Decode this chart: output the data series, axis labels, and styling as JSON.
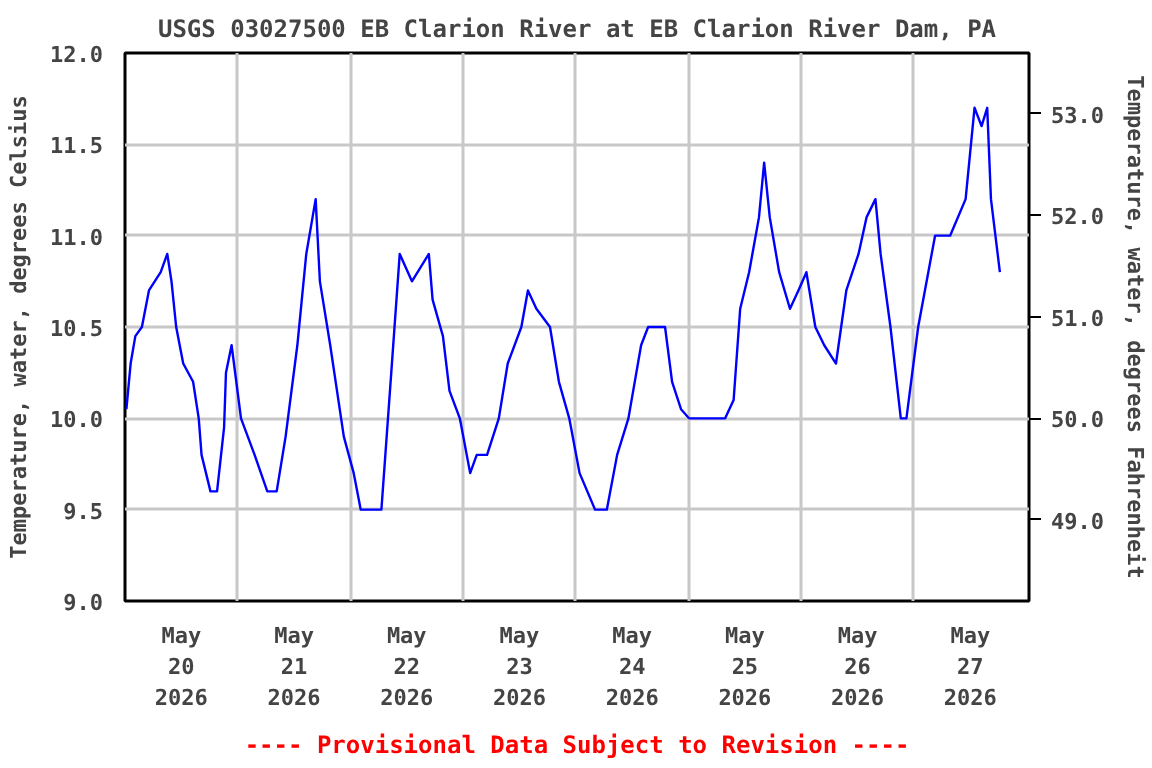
{
  "chart_data": {
    "type": "line",
    "title": "USGS 03027500 EB Clarion River at EB Clarion River Dam, PA",
    "ylabel": "Temperature, water, degrees Celsius",
    "y2label": "Temperature, water, degrees Fahrenheit",
    "annotations": [
      "---- Provisional Data Subject to Revision ----"
    ],
    "color": "#0000ff",
    "grid": true,
    "xlim": [
      "2026-05-20T00:00",
      "2026-05-28T00:30"
    ],
    "xticks": [
      {
        "value": "2026-05-20T12:00",
        "label": "May\n20\n2026"
      },
      {
        "value": "2026-05-21T12:00",
        "label": "May\n21\n2026"
      },
      {
        "value": "2026-05-22T12:00",
        "label": "May\n22\n2026"
      },
      {
        "value": "2026-05-23T12:00",
        "label": "May\n23\n2026"
      },
      {
        "value": "2026-05-24T12:00",
        "label": "May\n24\n2026"
      },
      {
        "value": "2026-05-25T12:00",
        "label": "May\n25\n2026"
      },
      {
        "value": "2026-05-26T12:00",
        "label": "May\n26\n2026"
      },
      {
        "value": "2026-05-27T12:00",
        "label": "May\n27\n2026"
      },
      {
        "value": "2026-05-21T00:00",
        "label": null
      },
      {
        "value": "2026-05-22T00:00",
        "label": null
      },
      {
        "value": "2026-05-23T00:00",
        "label": null
      },
      {
        "value": "2026-05-24T00:00",
        "label": null
      },
      {
        "value": "2026-05-25T00:00",
        "label": null
      },
      {
        "value": "2026-05-26T00:00",
        "label": null
      },
      {
        "value": "2026-05-27T00:00",
        "label": null
      }
    ],
    "ylim": [
      9.0,
      12.0
    ],
    "yticks": [
      {
        "value": 9.0,
        "label": "9.0"
      },
      {
        "value": 9.5,
        "label": "9.5"
      },
      {
        "value": 10.0,
        "label": "10.0"
      },
      {
        "value": 10.5,
        "label": "10.5"
      },
      {
        "value": 11.0,
        "label": "11.0"
      },
      {
        "value": 11.5,
        "label": "11.5"
      },
      {
        "value": 12.0,
        "label": "12.0"
      }
    ],
    "y2lim": [
      48.2,
      53.6
    ],
    "y2ticks": [
      {
        "value": 49,
        "label": "49.0"
      },
      {
        "value": 50,
        "label": "50.0"
      },
      {
        "value": 51,
        "label": "51.0"
      },
      {
        "value": 52,
        "label": "52.0"
      },
      {
        "value": 53,
        "label": "53.0"
      }
    ],
    "x": [
      "2026-05-20T00:18",
      "2026-05-20T01:12",
      "2026-05-20T02:12",
      "2026-05-20T03:36",
      "2026-05-20T05:06",
      "2026-05-20T07:36",
      "2026-05-20T09:00",
      "2026-05-20T09:54",
      "2026-05-20T10:54",
      "2026-05-20T12:24",
      "2026-05-20T14:30",
      "2026-05-20T15:42",
      "2026-05-20T16:18",
      "2026-05-20T18:12",
      "2026-05-20T19:36",
      "2026-05-20T21:06",
      "2026-05-20T21:30",
      "2026-05-20T22:42",
      "2026-05-21T00:42",
      "2026-05-21T03:36",
      "2026-05-21T06:18",
      "2026-05-21T08:18",
      "2026-05-21T10:12",
      "2026-05-21T12:42",
      "2026-05-21T14:36",
      "2026-05-21T16:36",
      "2026-05-21T17:30",
      "2026-05-21T19:42",
      "2026-05-21T22:36",
      "2026-05-22T00:42",
      "2026-05-22T02:12",
      "2026-05-22T06:36",
      "2026-05-22T08:42",
      "2026-05-22T10:30",
      "2026-05-22T13:06",
      "2026-05-22T16:42",
      "2026-05-22T17:30",
      "2026-05-22T19:42",
      "2026-05-22T21:06",
      "2026-05-22T23:18",
      "2026-05-23T01:30",
      "2026-05-23T02:54",
      "2026-05-23T05:06",
      "2026-05-23T07:36",
      "2026-05-23T09:30",
      "2026-05-23T12:24",
      "2026-05-23T13:48",
      "2026-05-23T15:36",
      "2026-05-23T18:30",
      "2026-05-23T20:24",
      "2026-05-23T22:36",
      "2026-05-24T00:48",
      "2026-05-24T04:06",
      "2026-05-24T06:36",
      "2026-05-24T08:48",
      "2026-05-24T11:12",
      "2026-05-24T13:54",
      "2026-05-24T15:24",
      "2026-05-24T19:00",
      "2026-05-24T20:30",
      "2026-05-24T22:24",
      "2026-05-25T00:06",
      "2026-05-25T07:48",
      "2026-05-25T09:36",
      "2026-05-25T11:00",
      "2026-05-25T12:54",
      "2026-05-25T15:00",
      "2026-05-25T16:06",
      "2026-05-25T17:18",
      "2026-05-25T19:18",
      "2026-05-25T21:36",
      "2026-05-25T23:24",
      "2026-05-26T01:06",
      "2026-05-26T03:00",
      "2026-05-26T04:54",
      "2026-05-26T07:24",
      "2026-05-26T09:36",
      "2026-05-26T12:12",
      "2026-05-26T13:54",
      "2026-05-26T15:48",
      "2026-05-26T16:54",
      "2026-05-26T19:00",
      "2026-05-26T21:12",
      "2026-05-26T22:24",
      "2026-05-27T00:54",
      "2026-05-27T04:30",
      "2026-05-27T07:42",
      "2026-05-27T11:00",
      "2026-05-27T12:54",
      "2026-05-27T14:24",
      "2026-05-27T15:36",
      "2026-05-27T16:24",
      "2026-05-27T18:18"
    ],
    "values": [
      10.05,
      10.3,
      10.45,
      10.5,
      10.7,
      10.8,
      10.9,
      10.75,
      10.5,
      10.3,
      10.2,
      10.0,
      9.8,
      9.6,
      9.6,
      9.95,
      10.25,
      10.4,
      10.0,
      9.8,
      9.6,
      9.6,
      9.9,
      10.4,
      10.9,
      11.2,
      10.75,
      10.4,
      9.9,
      9.7,
      9.5,
      9.5,
      10.25,
      10.9,
      10.75,
      10.9,
      10.65,
      10.45,
      10.15,
      10.0,
      9.7,
      9.8,
      9.8,
      10.0,
      10.3,
      10.5,
      10.7,
      10.6,
      10.5,
      10.2,
      10.0,
      9.7,
      9.5,
      9.5,
      9.8,
      10.0,
      10.4,
      10.5,
      10.5,
      10.2,
      10.05,
      10.0,
      10.0,
      10.1,
      10.6,
      10.8,
      11.1,
      11.4,
      11.1,
      10.8,
      10.6,
      10.7,
      10.8,
      10.5,
      10.4,
      10.3,
      10.7,
      10.9,
      11.1,
      11.2,
      10.9,
      10.5,
      10.0,
      10.0,
      10.5,
      11.0,
      11.0,
      11.2,
      11.7,
      11.6,
      11.7,
      11.2,
      10.8
    ]
  }
}
